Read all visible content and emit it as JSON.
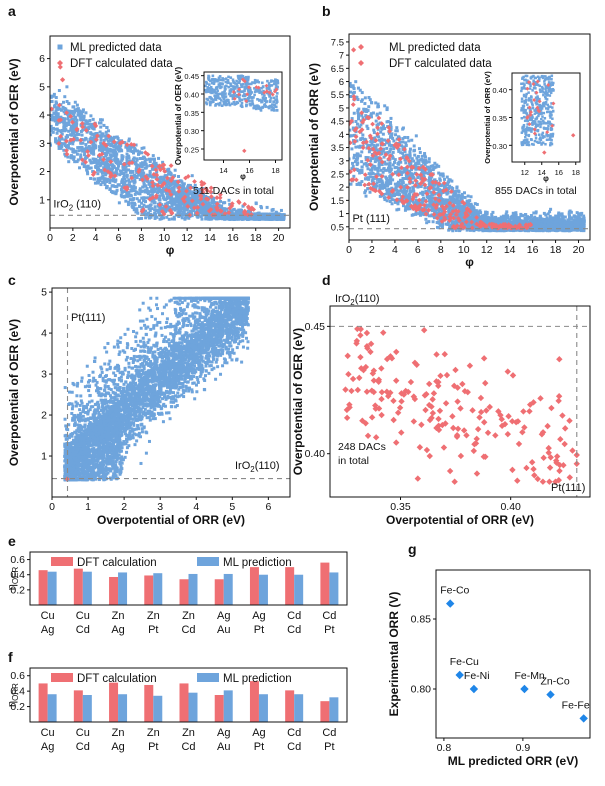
{
  "colors": {
    "blue": "#6ea4dc",
    "red": "#ef6f73",
    "ref_line": "#8a8a8a",
    "axis": "#111111"
  },
  "chart_data": [
    {
      "panel": "a",
      "type": "scatter",
      "xlabel": "φ",
      "ylabel": "Overpotential of OER (eV)",
      "xlim": [
        0,
        21
      ],
      "ylim": [
        0,
        6.8
      ],
      "xticks": [
        "0",
        "2",
        "4",
        "6",
        "8",
        "10",
        "12",
        "14",
        "16",
        "18",
        "20"
      ],
      "yticks": [
        "1",
        "2",
        "3",
        "4",
        "5",
        "6"
      ],
      "legend": [
        "ML predicted data",
        "DFT calculated data"
      ],
      "reference_line": {
        "label": "IrO2 (110)",
        "y": 0.45
      },
      "annotation": "511 DACs in total",
      "inset": {
        "xlim": [
          12.5,
          18.5
        ],
        "ylim": [
          0.22,
          0.46
        ],
        "xticks": [
          "14",
          "16",
          "18"
        ],
        "yticks": [
          "0.25",
          "0.30",
          "0.35",
          "0.40",
          "0.45"
        ],
        "ylabel": "Overpotential of OER (eV)",
        "xlabel": "φ"
      }
    },
    {
      "panel": "b",
      "type": "scatter",
      "xlabel": "φ",
      "ylabel": "Overpotential of ORR (eV)",
      "xlim": [
        0,
        21
      ],
      "ylim": [
        0,
        7.8
      ],
      "xticks": [
        "0",
        "2",
        "4",
        "6",
        "8",
        "10",
        "12",
        "14",
        "16",
        "18",
        "20"
      ],
      "yticks": [
        "0.5",
        "1",
        "1.5",
        "2",
        "2.5",
        "3",
        "3.5",
        "4",
        "4.5",
        "5",
        "5.5",
        "6",
        "6.5",
        "7",
        "7.5"
      ],
      "legend": [
        "ML predicted data",
        "DFT calculated data"
      ],
      "reference_line": {
        "label": "Pt (111)",
        "y": 0.43
      },
      "annotation": "855 DACs in total",
      "inset": {
        "xlim": [
          10.5,
          18.5
        ],
        "ylim": [
          0.27,
          0.43
        ],
        "xticks": [
          "12",
          "14",
          "16",
          "18"
        ],
        "yticks": [
          "0.30",
          "0.35",
          "0.40"
        ],
        "ylabel": "Overpotential of ORR (eV)",
        "xlabel": "φ"
      }
    },
    {
      "panel": "c",
      "type": "scatter",
      "xlabel": "Overpotential of ORR (eV)",
      "ylabel": "Overpotential of OER (eV)",
      "xlim": [
        0,
        6.6
      ],
      "ylim": [
        0,
        5.1
      ],
      "xticks": [
        "0",
        "1",
        "2",
        "3",
        "4",
        "5",
        "6"
      ],
      "yticks": [
        "1",
        "2",
        "3",
        "4",
        "5"
      ],
      "vline": {
        "label": "Pt(111)",
        "x": 0.43
      },
      "hline": {
        "label": "IrO2(110)",
        "y": 0.45
      }
    },
    {
      "panel": "d",
      "type": "scatter",
      "xlabel": "Overpotential of ORR (eV)",
      "ylabel": "Overpotential of OER (eV)",
      "xlim": [
        0.318,
        0.436
      ],
      "ylim": [
        0.383,
        0.458
      ],
      "xticks": [
        "0.35",
        "0.40"
      ],
      "yticks": [
        "0.40",
        "0.45"
      ],
      "vline": {
        "label": "Pt(111)",
        "x": 0.43
      },
      "hline": {
        "label": "IrO2(110)",
        "y": 0.45
      },
      "annotation": [
        "248  DACs",
        "in total"
      ]
    },
    {
      "panel": "e",
      "type": "bar",
      "ylabel": "ηOER",
      "categories": [
        [
          "Cu",
          "Ag"
        ],
        [
          "Cu",
          "Cd"
        ],
        [
          "Zn",
          "Ag"
        ],
        [
          "Zn",
          "Pt"
        ],
        [
          "Zn",
          "Cd"
        ],
        [
          "Ag",
          "Au"
        ],
        [
          "Ag",
          "Pt"
        ],
        [
          "Cd",
          "Cd"
        ],
        [
          "Cd",
          "Pt"
        ]
      ],
      "series": [
        {
          "name": "DFT calculation",
          "values": [
            0.46,
            0.48,
            0.37,
            0.39,
            0.34,
            0.34,
            0.5,
            0.5,
            0.56
          ]
        },
        {
          "name": "ML prediction",
          "values": [
            0.44,
            0.44,
            0.43,
            0.42,
            0.41,
            0.41,
            0.4,
            0.4,
            0.43
          ]
        }
      ],
      "ylim": [
        0,
        0.7
      ],
      "yticks": [
        "0.2",
        "0.4",
        "0.6"
      ]
    },
    {
      "panel": "f",
      "type": "bar",
      "ylabel": "ηORR",
      "categories": [
        [
          "Cu",
          "Ag"
        ],
        [
          "Cu",
          "Cd"
        ],
        [
          "Zn",
          "Ag"
        ],
        [
          "Zn",
          "Pt"
        ],
        [
          "Zn",
          "Cd"
        ],
        [
          "Ag",
          "Au"
        ],
        [
          "Ag",
          "Pt"
        ],
        [
          "Cd",
          "Cd"
        ],
        [
          "Cd",
          "Pt"
        ]
      ],
      "series": [
        {
          "name": "DFT calculation",
          "values": [
            0.5,
            0.41,
            0.51,
            0.48,
            0.5,
            0.35,
            0.53,
            0.41,
            0.27
          ]
        },
        {
          "name": "ML prediction",
          "values": [
            0.36,
            0.35,
            0.36,
            0.34,
            0.38,
            0.41,
            0.36,
            0.36,
            0.32
          ]
        }
      ],
      "ylim": [
        0,
        0.7
      ],
      "yticks": [
        "0.2",
        "0.4",
        "0.6"
      ]
    },
    {
      "panel": "g",
      "type": "scatter",
      "xlabel": "ML predicted ORR (eV)",
      "ylabel": "Experimental ORR (V)",
      "xlim": [
        0.79,
        0.985
      ],
      "ylim": [
        0.765,
        0.885
      ],
      "xticks": [
        "0.8",
        "0.9"
      ],
      "yticks": [
        "0.80",
        "0.85"
      ],
      "points": [
        {
          "label": "Fe-Co",
          "x": 0.808,
          "y": 0.861
        },
        {
          "label": "Fe-Cu",
          "x": 0.82,
          "y": 0.81
        },
        {
          "label": "Fe-Ni",
          "x": 0.838,
          "y": 0.8
        },
        {
          "label": "Fe-Mn",
          "x": 0.902,
          "y": 0.8
        },
        {
          "label": "Zn-Co",
          "x": 0.935,
          "y": 0.796
        },
        {
          "label": "Fe-Fe",
          "x": 0.977,
          "y": 0.779
        }
      ]
    }
  ]
}
